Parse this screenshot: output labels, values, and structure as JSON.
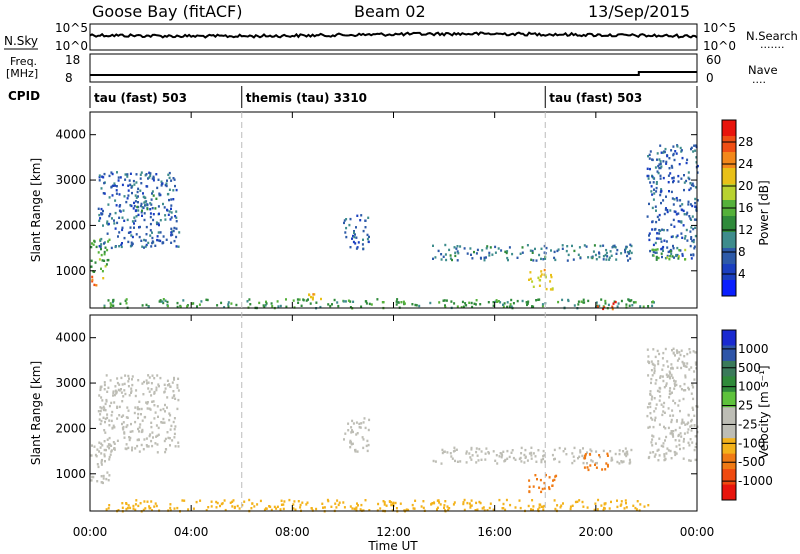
{
  "header": {
    "station": "Goose Bay (fitACF)",
    "beam": "Beam 02",
    "date": "13/Sep/2015"
  },
  "nsky_panel": {
    "label": "N.Sky",
    "left_ticks": [
      "10^5",
      "10^0"
    ],
    "right_label": "N.Search",
    "right_ticks": [
      "10^5",
      "10^0"
    ],
    "legend_dots": "·······"
  },
  "freq_panel": {
    "label_line1": "Freq.",
    "label_line2": "[MHz]",
    "left_ticks": [
      "18",
      "8"
    ],
    "right_label": "Nave",
    "right_ticks": [
      "60",
      "0"
    ],
    "legend_dots": "····"
  },
  "cpid": {
    "label": "CPID",
    "segments": [
      {
        "name": "tau (fast) 503",
        "start_hour": 0
      },
      {
        "name": "themis (tau) 3310",
        "start_hour": 6
      },
      {
        "name": "tau (fast) 503",
        "start_hour": 18
      }
    ]
  },
  "axes": {
    "ylabel": "Slant Range [km]",
    "y_ticks": [
      "4000",
      "3000",
      "2000",
      "1000"
    ],
    "x_ticks": [
      "00:00",
      "04:00",
      "08:00",
      "12:00",
      "16:00",
      "20:00",
      "00:00"
    ],
    "xlabel": "Time UT"
  },
  "power_colorbar": {
    "label": "Power [dB]",
    "ticks": [
      "28",
      "24",
      "20",
      "16",
      "12",
      "8",
      "4"
    ],
    "colors": [
      "#e8140c",
      "#f04e14",
      "#f3881a",
      "#e8c018",
      "#b8d230",
      "#55b13a",
      "#2f8a3a",
      "#3e8c8c",
      "#2d5aa8",
      "#1a3fc0",
      "#0a1fff"
    ]
  },
  "velocity_colorbar": {
    "label": "Velocity [m s⁻¹]",
    "ticks": [
      "1000",
      "500",
      "100",
      "25",
      "-25",
      "-100",
      "-500",
      "-1000"
    ],
    "colors": [
      "#1a2ad0",
      "#2e55a8",
      "#3a7a5a",
      "#2f8a3a",
      "#5ec23c",
      "#bdbdb5",
      "#bdbdb5",
      "#f3b21a",
      "#f07a14",
      "#ef4a10",
      "#e8140c"
    ]
  },
  "chart_data": {
    "type": "heatmap",
    "x_range_hours": [
      0,
      24
    ],
    "y_range_km": [
      180,
      4500
    ],
    "panels": [
      {
        "quantity": "Power",
        "unit": "dB",
        "regions": [
          {
            "t": [
              0.0,
              0.8
            ],
            "r": [
              1000,
              1750
            ],
            "value": 14
          },
          {
            "t": [
              0.0,
              0.6
            ],
            "r": [
              700,
              900
            ],
            "value": 24
          },
          {
            "t": [
              0.3,
              3.5
            ],
            "r": [
              1500,
              3200
            ],
            "value": 6
          },
          {
            "t": [
              1.8,
              2.6
            ],
            "r": [
              2350,
              2700
            ],
            "value": 10
          },
          {
            "t": [
              0.5,
              22.5
            ],
            "r": [
              200,
              400
            ],
            "value": 12
          },
          {
            "t": [
              8.5,
              9.6
            ],
            "r": [
              380,
              520
            ],
            "value": 22
          },
          {
            "t": [
              10.0,
              11.0
            ],
            "r": [
              1500,
              2250
            ],
            "value": 6
          },
          {
            "t": [
              13.5,
              21.5
            ],
            "r": [
              1250,
              1600
            ],
            "value": 8
          },
          {
            "t": [
              17.3,
              18.3
            ],
            "r": [
              600,
              1050
            ],
            "value": 20
          },
          {
            "t": [
              20.0,
              20.8
            ],
            "r": [
              180,
              350
            ],
            "value": 28
          },
          {
            "t": [
              22.0,
              24.0
            ],
            "r": [
              1300,
              3800
            ],
            "value": 6
          },
          {
            "t": [
              22.0,
              23.5
            ],
            "r": [
              1250,
              1500
            ],
            "value": 14
          }
        ]
      },
      {
        "quantity": "Velocity",
        "unit": "m s⁻¹",
        "regions": [
          {
            "t": [
              0.0,
              0.8
            ],
            "r": [
              800,
              1700
            ],
            "value": 0
          },
          {
            "t": [
              0.3,
              3.5
            ],
            "r": [
              1500,
              3200
            ],
            "value": 0
          },
          {
            "t": [
              0.5,
              22.5
            ],
            "r": [
              200,
              450
            ],
            "value": -50
          },
          {
            "t": [
              10.0,
              11.0
            ],
            "r": [
              1500,
              2250
            ],
            "value": 0
          },
          {
            "t": [
              13.5,
              21.5
            ],
            "r": [
              1250,
              1600
            ],
            "value": 0
          },
          {
            "t": [
              17.3,
              18.4
            ],
            "r": [
              600,
              1000
            ],
            "value": -300
          },
          {
            "t": [
              19.5,
              20.5
            ],
            "r": [
              1100,
              1500
            ],
            "value": -200
          },
          {
            "t": [
              22.0,
              24.0
            ],
            "r": [
              1300,
              3800
            ],
            "value": 0
          }
        ]
      }
    ]
  }
}
